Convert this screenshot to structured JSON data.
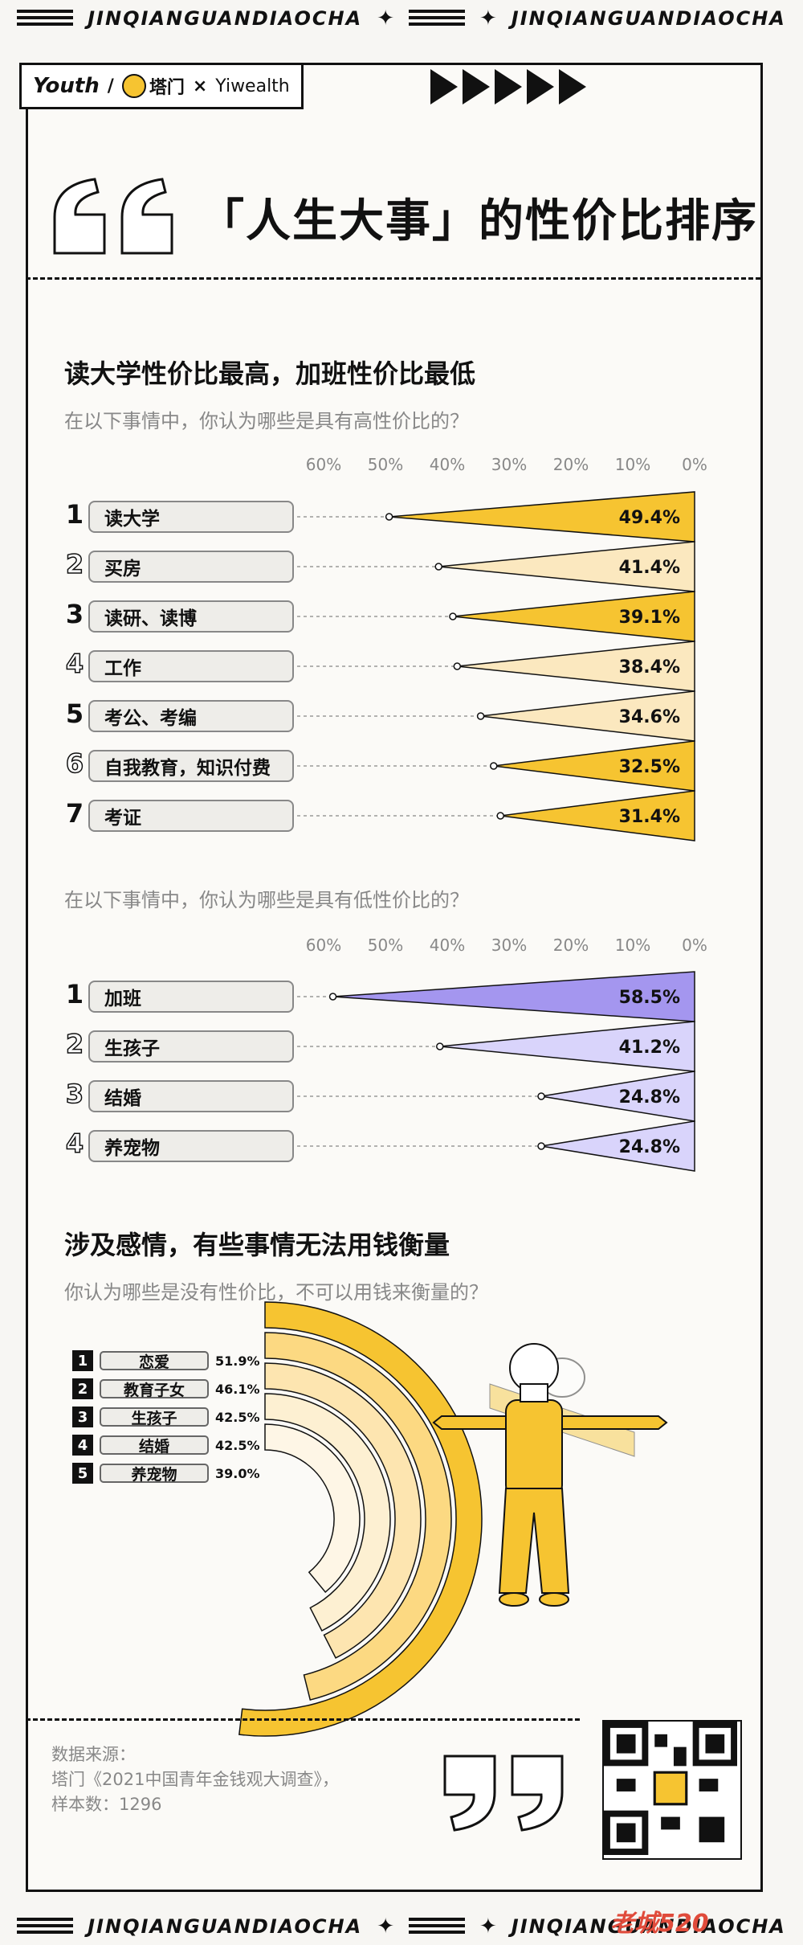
{
  "header": {
    "band_text": "JINQIANGUANDIAOCHA"
  },
  "brand": {
    "youth": "Youth",
    "ta_men": "塔门",
    "times": "×",
    "yiwealth": "Yiwealth"
  },
  "title": "「人生大事」的性价比排序",
  "section1": {
    "heading": "读大学性价比最高，加班性价比最低",
    "question_high": "在以下事情中，你认为哪些是具有高性价比的？",
    "question_low": "在以下事情中，你认为哪些是具有低性价比的？"
  },
  "section2": {
    "heading": "涉及感情，有些事情无法用钱衡量",
    "question": "你认为哪些是没有性价比，不可以用钱来衡量的？"
  },
  "source": {
    "label": "数据来源：",
    "line1": "塔门《2021中国青年金钱观大调查》，",
    "line2": "样本数：1296"
  },
  "footer": {
    "watermark": "老城520"
  },
  "colors": {
    "yellow": "#f6c431",
    "pale_yellow": "#fbe8bf",
    "purple": "#a496ef",
    "pale_purple": "#d9d4fb",
    "black": "#111111"
  },
  "chart_data": [
    {
      "type": "bar",
      "title": "在以下事情中，你认为哪些是具有高性价比的？",
      "xlabel": "",
      "ylabel": "",
      "axis_ticks": [
        "60%",
        "50%",
        "40%",
        "30%",
        "20%",
        "10%",
        "0%"
      ],
      "xlim": [
        0,
        60
      ],
      "categories": [
        "读大学",
        "买房",
        "读研、读博",
        "工作",
        "考公、考编",
        "自我教育，知识付费",
        "考证"
      ],
      "values": [
        49.4,
        41.4,
        39.1,
        38.4,
        34.6,
        32.5,
        31.4
      ],
      "labels": [
        "49.4%",
        "41.4%",
        "39.1%",
        "38.4%",
        "34.6%",
        "32.5%",
        "31.4%"
      ],
      "ranks": [
        "1",
        "2",
        "3",
        "4",
        "5",
        "6",
        "7"
      ]
    },
    {
      "type": "bar",
      "title": "在以下事情中，你认为哪些是具有低性价比的？",
      "xlabel": "",
      "ylabel": "",
      "axis_ticks": [
        "60%",
        "50%",
        "40%",
        "30%",
        "20%",
        "10%",
        "0%"
      ],
      "xlim": [
        0,
        60
      ],
      "categories": [
        "加班",
        "生孩子",
        "结婚",
        "养宠物"
      ],
      "values": [
        58.5,
        41.2,
        24.8,
        24.8
      ],
      "labels": [
        "58.5%",
        "41.2%",
        "24.8%",
        "24.8%"
      ],
      "ranks": [
        "1",
        "2",
        "3",
        "4"
      ]
    },
    {
      "type": "pie",
      "title": "你认为哪些是没有性价比，不可以用钱来衡量的？",
      "categories": [
        "恋爱",
        "教育子女",
        "生孩子",
        "结婚",
        "养宠物"
      ],
      "values": [
        51.9,
        46.1,
        42.5,
        42.5,
        39.0
      ],
      "labels": [
        "51.9%",
        "46.1%",
        "42.5%",
        "42.5%",
        "39.0%"
      ],
      "ranks": [
        "1",
        "2",
        "3",
        "4",
        "5"
      ]
    }
  ]
}
